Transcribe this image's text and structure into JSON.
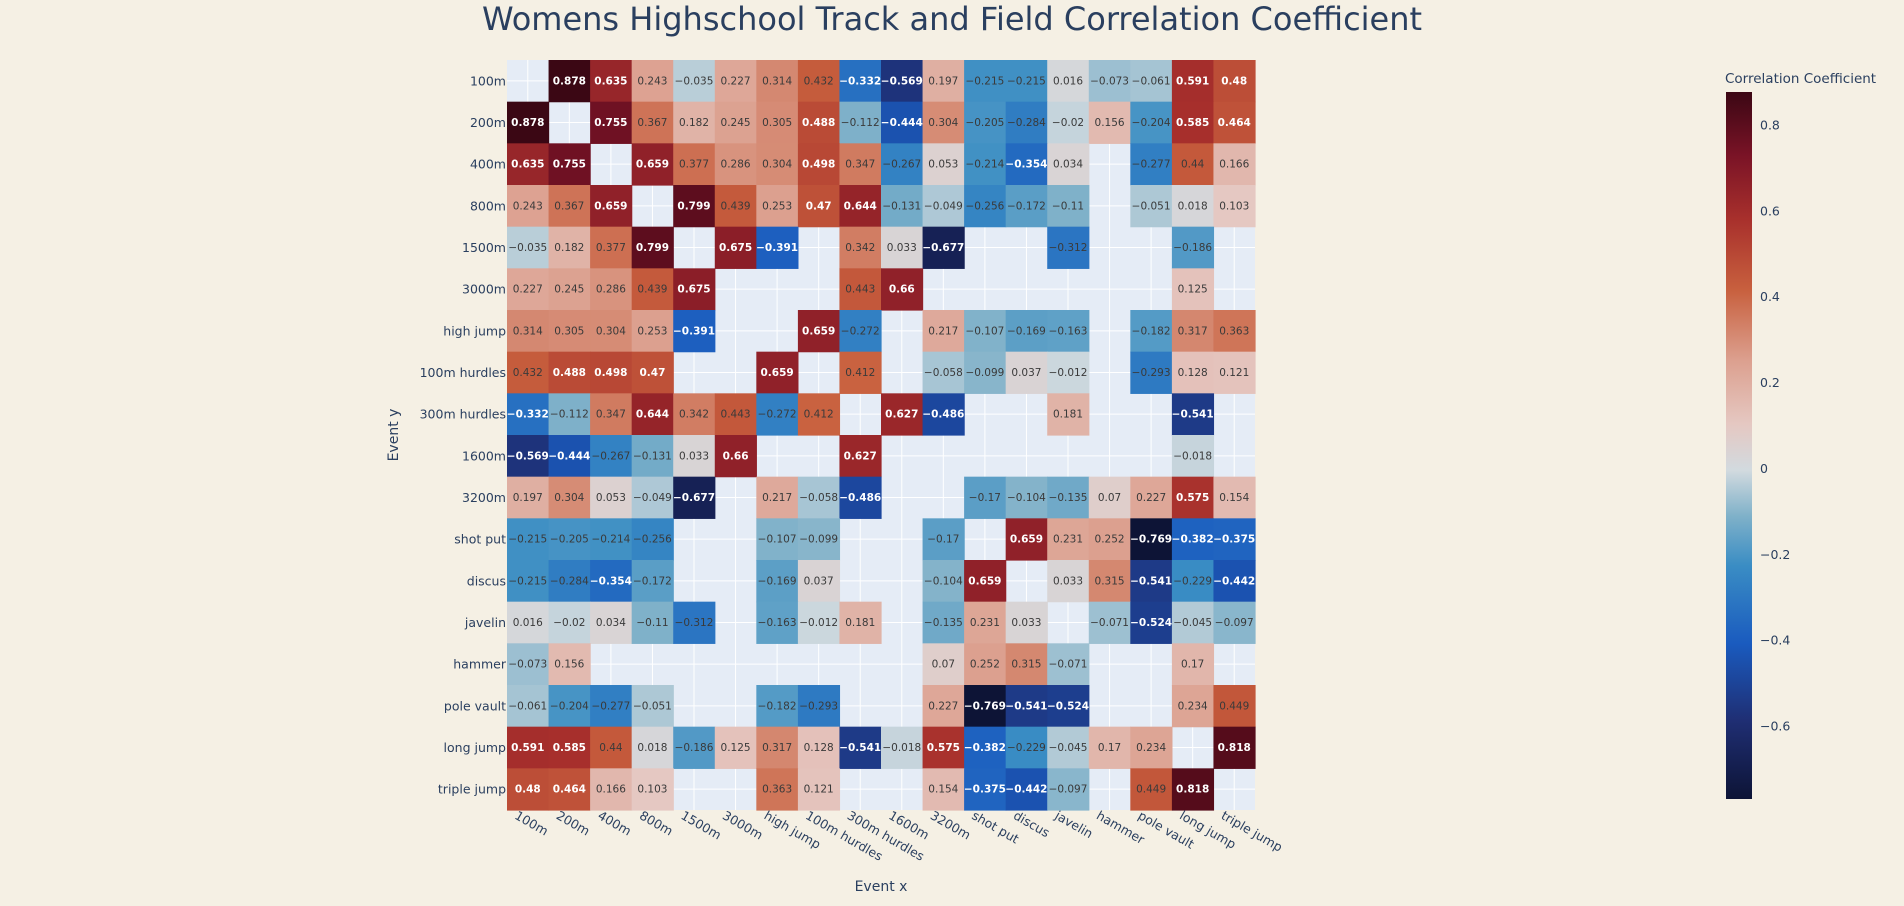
{
  "chart_data": {
    "type": "heatmap",
    "title": "Womens Highschool Track and Field Correlation Coefficient",
    "xlabel": "Event x",
    "ylabel": "Event y",
    "colorbar_title": "Correlation Coefficient",
    "colorbar_ticks": [
      "0.8",
      "0.6",
      "0.4",
      "0.2",
      "0",
      "−0.2",
      "−0.4",
      "−0.6"
    ],
    "colorbar_tick_values": [
      0.8,
      0.6,
      0.4,
      0.2,
      0,
      -0.2,
      -0.4,
      -0.6
    ],
    "zmin": -0.769,
    "zmax": 0.878,
    "colorscale": [
      [
        0.0,
        "#0d1436"
      ],
      [
        0.11,
        "#1f2e73"
      ],
      [
        0.22,
        "#1a5bbf"
      ],
      [
        0.33,
        "#3a8dc4"
      ],
      [
        0.4,
        "#7fb1c9"
      ],
      [
        0.465,
        "#d2dadf"
      ],
      [
        0.53,
        "#e5c8c2"
      ],
      [
        0.62,
        "#dca08f"
      ],
      [
        0.72,
        "#c8603e"
      ],
      [
        0.82,
        "#a8302c"
      ],
      [
        0.91,
        "#7a1326"
      ],
      [
        1.0,
        "#3b0714"
      ]
    ],
    "categories": [
      "100m",
      "200m",
      "400m",
      "800m",
      "1500m",
      "3000m",
      "high jump",
      "100m hurdles",
      "300m hurdles",
      "1600m",
      "3200m",
      "shot put",
      "discus",
      "javelin",
      "hammer",
      "pole vault",
      "long jump",
      "triple jump"
    ],
    "z": [
      [
        null,
        0.878,
        0.635,
        0.243,
        -0.035,
        0.227,
        0.314,
        0.432,
        -0.332,
        -0.569,
        0.197,
        -0.215,
        -0.215,
        0.016,
        -0.073,
        -0.061,
        0.591,
        0.48
      ],
      [
        0.878,
        null,
        0.755,
        0.367,
        0.182,
        0.245,
        0.305,
        0.488,
        -0.112,
        -0.444,
        0.304,
        -0.205,
        -0.284,
        -0.02,
        0.156,
        -0.204,
        0.585,
        0.464
      ],
      [
        0.635,
        0.755,
        null,
        0.659,
        0.377,
        0.286,
        0.304,
        0.498,
        0.347,
        -0.267,
        0.053,
        -0.214,
        -0.354,
        0.034,
        null,
        -0.277,
        0.44,
        0.166
      ],
      [
        0.243,
        0.367,
        0.659,
        null,
        0.799,
        0.439,
        0.253,
        0.47,
        0.644,
        -0.131,
        -0.049,
        -0.256,
        -0.172,
        -0.11,
        null,
        -0.051,
        0.018,
        0.103
      ],
      [
        -0.035,
        0.182,
        0.377,
        0.799,
        null,
        0.675,
        -0.391,
        null,
        0.342,
        0.033,
        -0.677,
        null,
        null,
        -0.312,
        null,
        null,
        -0.186,
        null
      ],
      [
        0.227,
        0.245,
        0.286,
        0.439,
        0.675,
        null,
        null,
        null,
        0.443,
        0.66,
        null,
        null,
        null,
        null,
        null,
        null,
        0.125,
        null
      ],
      [
        0.314,
        0.305,
        0.304,
        0.253,
        -0.391,
        null,
        null,
        0.659,
        -0.272,
        null,
        0.217,
        -0.107,
        -0.169,
        -0.163,
        null,
        -0.182,
        0.317,
        0.363
      ],
      [
        0.432,
        0.488,
        0.498,
        0.47,
        null,
        null,
        0.659,
        null,
        0.412,
        null,
        -0.058,
        -0.099,
        0.037,
        -0.012,
        null,
        -0.293,
        0.128,
        0.121
      ],
      [
        -0.332,
        -0.112,
        0.347,
        0.644,
        0.342,
        0.443,
        -0.272,
        0.412,
        null,
        0.627,
        -0.486,
        null,
        null,
        0.181,
        null,
        null,
        -0.541,
        null
      ],
      [
        -0.569,
        -0.444,
        -0.267,
        -0.131,
        0.033,
        0.66,
        null,
        null,
        0.627,
        null,
        null,
        null,
        null,
        null,
        null,
        null,
        -0.018,
        null
      ],
      [
        0.197,
        0.304,
        0.053,
        -0.049,
        -0.677,
        null,
        0.217,
        -0.058,
        -0.486,
        null,
        null,
        -0.17,
        -0.104,
        -0.135,
        0.07,
        0.227,
        0.575,
        0.154
      ],
      [
        -0.215,
        -0.205,
        -0.214,
        -0.256,
        null,
        null,
        -0.107,
        -0.099,
        null,
        null,
        -0.17,
        null,
        0.659,
        0.231,
        0.252,
        -0.769,
        -0.382,
        -0.375
      ],
      [
        -0.215,
        -0.284,
        -0.354,
        -0.172,
        null,
        null,
        -0.169,
        0.037,
        null,
        null,
        -0.104,
        0.659,
        null,
        0.033,
        0.315,
        -0.541,
        -0.229,
        -0.442
      ],
      [
        0.016,
        -0.02,
        0.034,
        -0.11,
        -0.312,
        null,
        -0.163,
        -0.012,
        0.181,
        null,
        -0.135,
        0.231,
        0.033,
        null,
        -0.071,
        -0.524,
        -0.045,
        -0.097
      ],
      [
        -0.073,
        0.156,
        null,
        null,
        null,
        null,
        null,
        null,
        null,
        null,
        0.07,
        0.252,
        0.315,
        -0.071,
        null,
        null,
        0.17,
        null
      ],
      [
        -0.061,
        -0.204,
        -0.277,
        -0.051,
        null,
        null,
        -0.182,
        -0.293,
        null,
        null,
        0.227,
        -0.769,
        -0.541,
        -0.524,
        null,
        null,
        0.234,
        0.449
      ],
      [
        0.591,
        0.585,
        0.44,
        0.018,
        -0.186,
        0.125,
        0.317,
        0.128,
        -0.541,
        -0.018,
        0.575,
        -0.382,
        -0.229,
        -0.045,
        0.17,
        0.234,
        null,
        0.818
      ],
      [
        0.48,
        0.464,
        0.166,
        0.103,
        null,
        null,
        0.363,
        0.121,
        null,
        null,
        0.154,
        -0.375,
        -0.442,
        -0.097,
        null,
        0.449,
        0.818,
        null
      ]
    ]
  }
}
